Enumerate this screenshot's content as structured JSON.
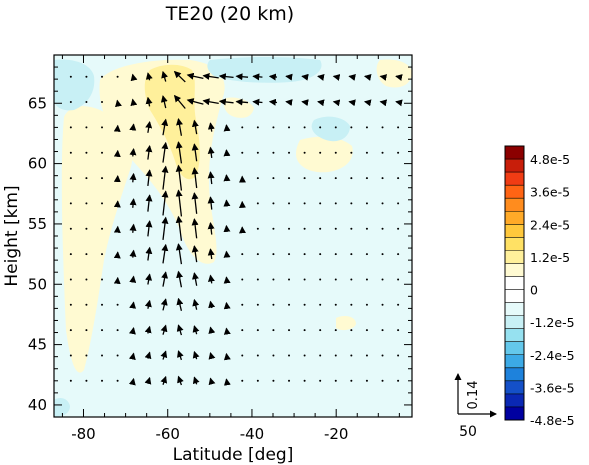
{
  "chart_data": {
    "type": "heatmap",
    "title": "TE20 (20 km)",
    "xlabel": "Latitude [deg]",
    "ylabel": "Height [km]",
    "xlim": [
      -87,
      -2
    ],
    "ylim": [
      39,
      69
    ],
    "x_ticks": [
      -80,
      -60,
      -40,
      -20
    ],
    "y_ticks": [
      40,
      45,
      50,
      55,
      60,
      65
    ],
    "colorbar": {
      "labels": [
        "4.8e-5",
        "3.6e-5",
        "2.4e-5",
        "1.2e-5",
        "0",
        "-1.2e-5",
        "-2.4e-5",
        "-3.6e-5",
        "-4.8e-5"
      ],
      "colors": [
        "#8b0000",
        "#c81e0a",
        "#f03c14",
        "#ff6414",
        "#ff8c1e",
        "#ffaa28",
        "#ffc83c",
        "#ffe164",
        "#fff09b",
        "#fffad2",
        "#ffffff",
        "#ffffff",
        "#e6fafa",
        "#c8f0f5",
        "#96e1f0",
        "#64c8eb",
        "#3caae6",
        "#1e82dc",
        "#1450c8",
        "#0a28b4",
        "#0000a0"
      ]
    },
    "vector_reference": {
      "horizontal_label": "50",
      "vertical_label": "0.14"
    }
  }
}
